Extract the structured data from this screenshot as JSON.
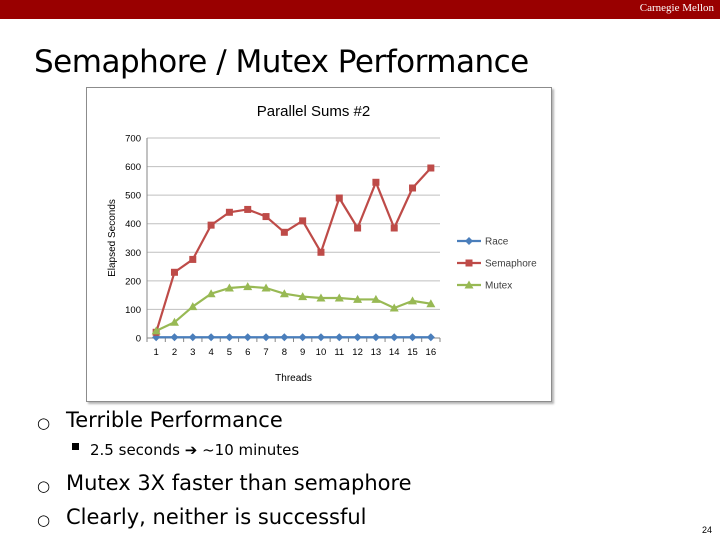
{
  "header": {
    "brand": "Carnegie Mellon",
    "bar_color": "#990000"
  },
  "slide": {
    "title": "Semaphore / Mutex Performance",
    "page_number": "24"
  },
  "bullets": [
    {
      "icon": "hollow-circle-bullet",
      "text": "Terrible Performance"
    },
    {
      "icon": "hollow-circle-bullet",
      "text": "Mutex 3X faster than semaphore"
    },
    {
      "icon": "hollow-circle-bullet",
      "text": "Clearly, neither is successful"
    }
  ],
  "sub_bullet": {
    "icon": "square-bullet",
    "text_before": "2.5 seconds",
    "arrow": "➔",
    "text_after": "~10 minutes"
  },
  "chart_data": {
    "type": "line",
    "title": "Parallel Sums #2",
    "xlabel": "Threads",
    "ylabel": "Elapsed Seconds",
    "x": [
      1,
      2,
      3,
      4,
      5,
      6,
      7,
      8,
      9,
      10,
      11,
      12,
      13,
      14,
      15,
      16
    ],
    "ylim": [
      0,
      700
    ],
    "yticks": [
      0,
      100,
      200,
      300,
      400,
      500,
      600,
      700
    ],
    "grid": true,
    "legend_position": "right",
    "series": [
      {
        "name": "Race",
        "color": "#4a7ebb",
        "marker": "diamond",
        "values": [
          2.5,
          2.5,
          2.5,
          2.5,
          2.5,
          2.5,
          2.5,
          2.5,
          2.5,
          2.5,
          2.5,
          2.5,
          2.5,
          2.5,
          2.5,
          2.5
        ]
      },
      {
        "name": "Semaphore",
        "color": "#be4b48",
        "marker": "square",
        "values": [
          20,
          230,
          275,
          395,
          440,
          450,
          425,
          370,
          410,
          300,
          490,
          385,
          545,
          385,
          525,
          595
        ]
      },
      {
        "name": "Mutex",
        "color": "#98b954",
        "marker": "triangle",
        "values": [
          25,
          55,
          110,
          155,
          175,
          180,
          175,
          155,
          145,
          140,
          140,
          135,
          135,
          105,
          130,
          120
        ]
      }
    ]
  }
}
